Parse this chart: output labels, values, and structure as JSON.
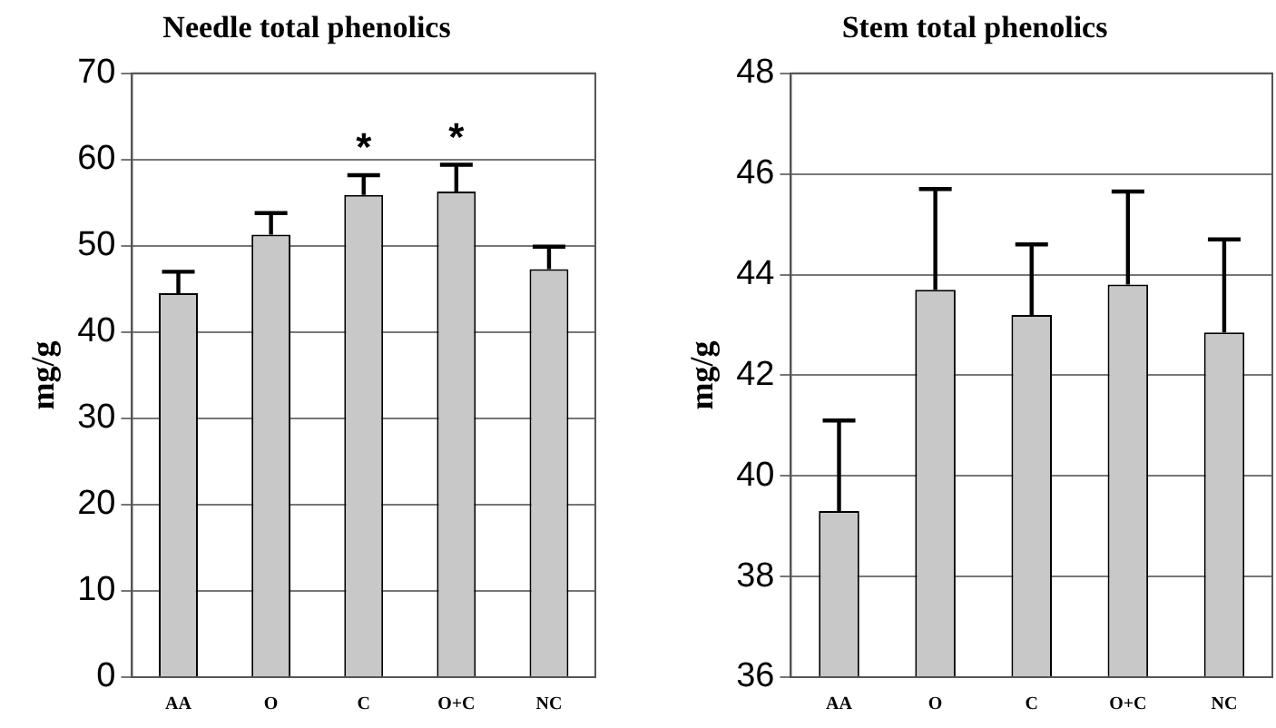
{
  "chart_data": [
    {
      "type": "bar",
      "title": "Needle total phenolics",
      "ylabel": "mg/g",
      "categories": [
        "AA",
        "O",
        "C",
        "O+C",
        "NC"
      ],
      "values": [
        44.5,
        51.3,
        55.9,
        56.3,
        47.3
      ],
      "errors": [
        [
          44.5,
          47.0
        ],
        [
          51.3,
          53.8
        ],
        [
          55.9,
          58.2
        ],
        [
          56.3,
          59.4
        ],
        [
          47.3,
          49.9
        ]
      ],
      "color": "#c8c8c8",
      "ylim": [
        0,
        70
      ],
      "yticks": [
        0,
        10,
        20,
        30,
        40,
        50,
        60,
        70
      ],
      "grid": "y",
      "annotations": [
        {
          "text": "*",
          "x": "C",
          "y": 58.2
        },
        {
          "text": "*",
          "x": "O+C",
          "y": 59.4
        }
      ]
    },
    {
      "type": "bar",
      "title": "Stem total phenolics",
      "ylabel": "mg/g",
      "categories": [
        "AA",
        "O",
        "C",
        "O+C",
        "NC"
      ],
      "values": [
        39.3,
        43.7,
        43.2,
        43.8,
        42.85
      ],
      "errors": [
        [
          39.3,
          41.1
        ],
        [
          43.7,
          45.7
        ],
        [
          43.2,
          44.6
        ],
        [
          43.8,
          45.65
        ],
        [
          42.85,
          44.7
        ]
      ],
      "color": "#c8c8c8",
      "ylim": [
        36,
        48
      ],
      "yticks": [
        36,
        38,
        40,
        42,
        44,
        46,
        48
      ],
      "grid": "y"
    }
  ]
}
